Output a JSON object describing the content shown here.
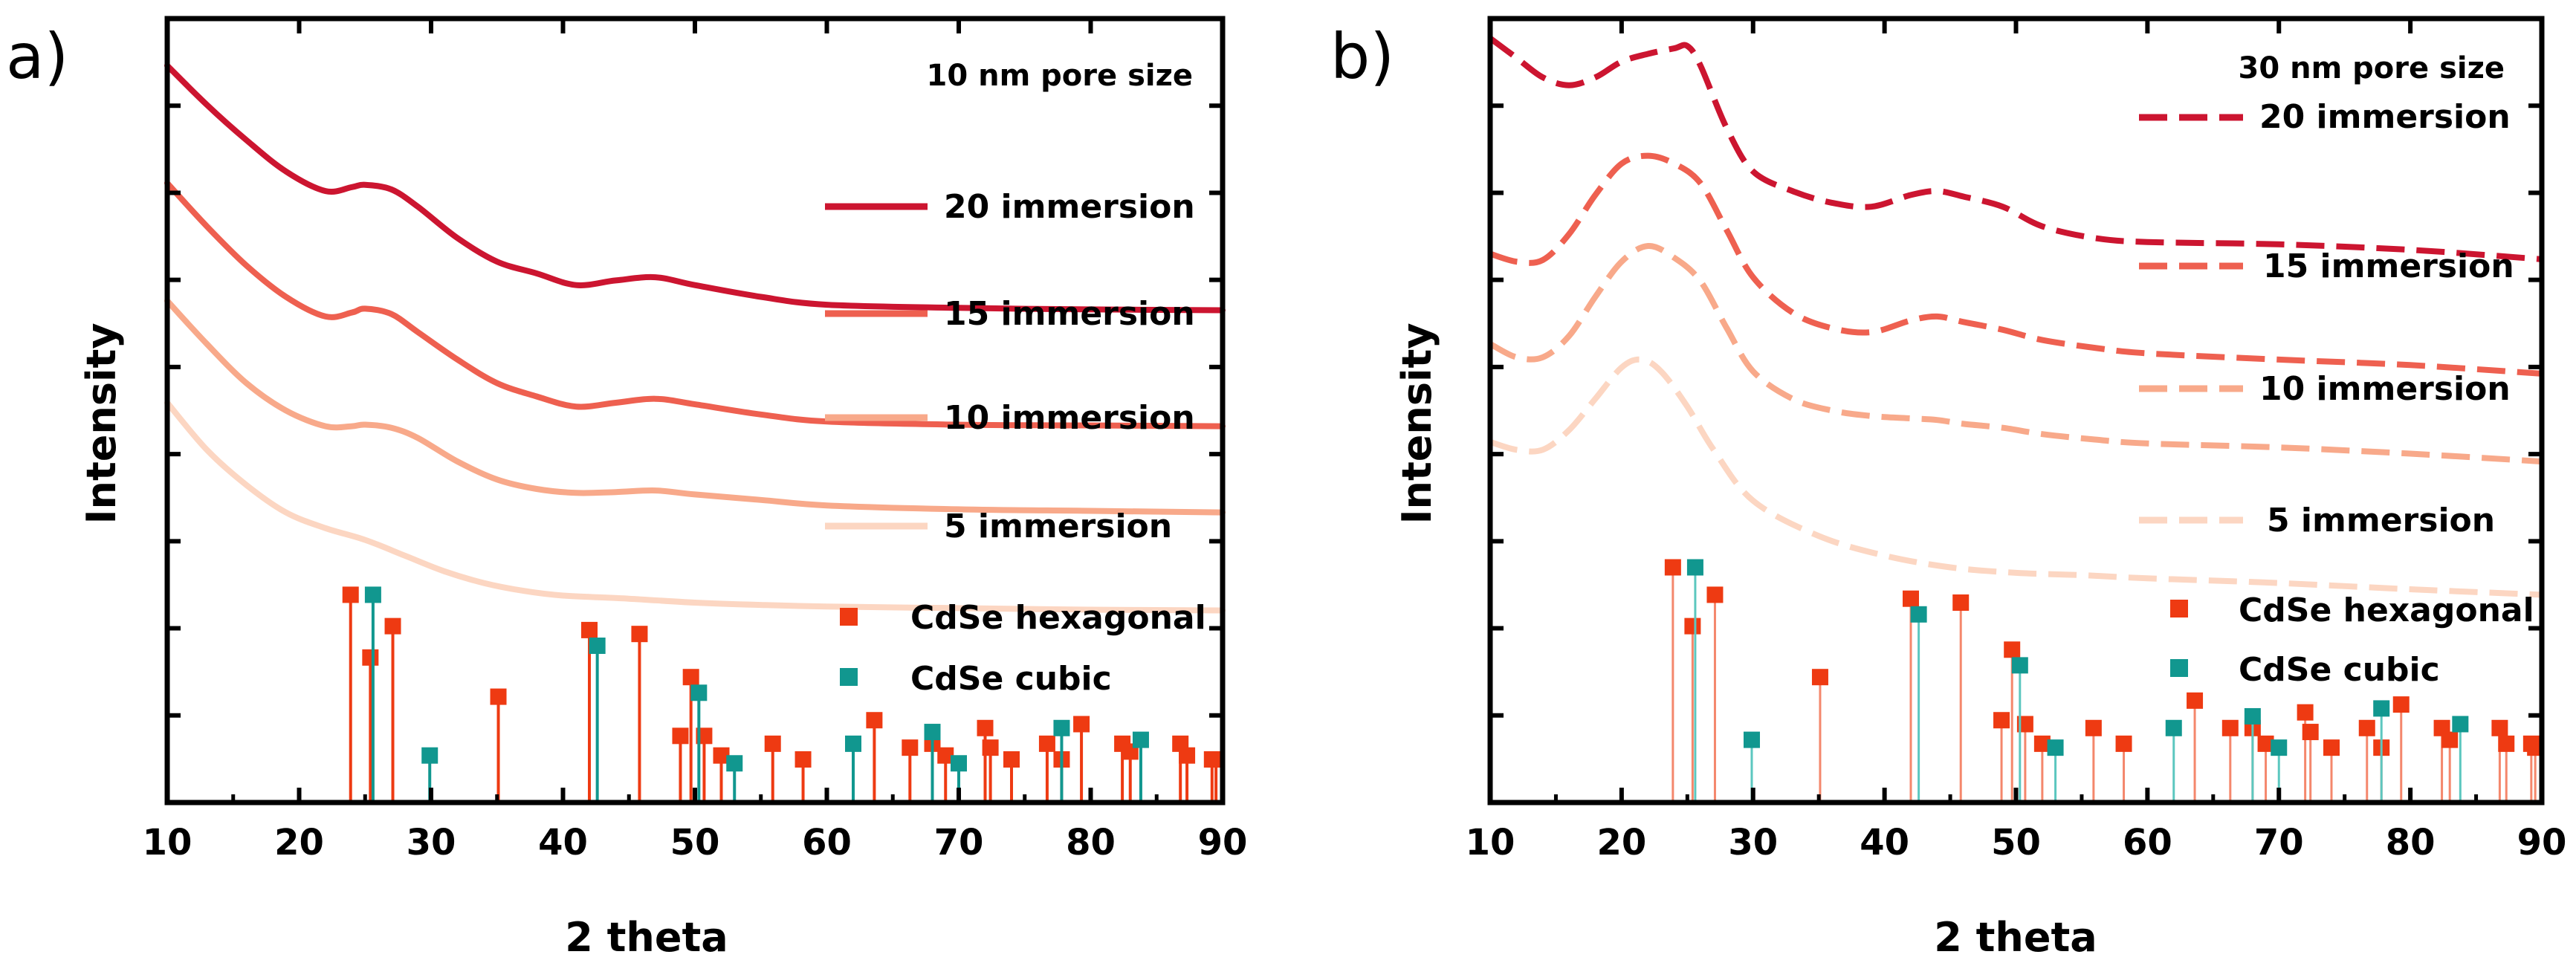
{
  "colors": {
    "ink": "#000000",
    "hexagonal": "#ee3a12",
    "cubic": "#11978f",
    "hex_stick": "#f4876c",
    "cubic_stick": "#5cc7bf",
    "s20": "#cc1530",
    "s15": "#ee6050",
    "s10": "#f8a98a",
    "s5": "#fcd6c2"
  },
  "chart_data": [
    {
      "type": "line",
      "panel_label": "a)",
      "title": "10 nm pore size",
      "xlabel": "2 theta",
      "ylabel": "Intensity",
      "xlim": [
        10,
        90
      ],
      "ylim": [
        0,
        100
      ],
      "xticks": [
        10,
        20,
        30,
        40,
        50,
        60,
        70,
        80,
        90
      ],
      "line_style": "solid",
      "grid": false,
      "series": [
        {
          "name": "20 immersion",
          "color_key": "s20",
          "x": [
            10,
            13,
            16,
            19,
            22,
            24,
            25,
            27,
            29,
            32,
            35,
            38,
            41,
            44,
            47,
            50,
            55,
            60,
            70,
            80,
            90
          ],
          "y": [
            94,
            89,
            84.5,
            80.5,
            78,
            78.5,
            78.8,
            78.2,
            76,
            72,
            69,
            67.5,
            66,
            66.6,
            67,
            66,
            64.5,
            63.5,
            63.1,
            62.9,
            62.8
          ]
        },
        {
          "name": "15 immersion",
          "color_key": "s15",
          "x": [
            10,
            13,
            16,
            19,
            22,
            24,
            25,
            27,
            29,
            32,
            35,
            38,
            41,
            44,
            47,
            50,
            55,
            60,
            70,
            80,
            90
          ],
          "y": [
            79,
            73.5,
            68.5,
            64.5,
            62,
            62.5,
            63,
            62.3,
            60,
            56.5,
            53.5,
            51.8,
            50.5,
            51,
            51.5,
            50.8,
            49.5,
            48.6,
            48.2,
            48.1,
            48
          ]
        },
        {
          "name": "10 immersion",
          "color_key": "s10",
          "x": [
            10,
            13,
            16,
            19,
            22,
            24,
            25,
            27,
            29,
            32,
            35,
            38,
            41,
            44,
            47,
            50,
            55,
            60,
            70,
            80,
            90
          ],
          "y": [
            64,
            58.5,
            53.5,
            50,
            48,
            48,
            48.2,
            47.8,
            46.5,
            43.5,
            41.2,
            40,
            39.5,
            39.6,
            39.8,
            39.3,
            38.6,
            37.9,
            37.4,
            37.2,
            37
          ]
        },
        {
          "name": "5 immersion",
          "color_key": "s5",
          "x": [
            10,
            13,
            16,
            19,
            22,
            25,
            28,
            31,
            34,
            37,
            40,
            45,
            50,
            55,
            60,
            70,
            80,
            90
          ],
          "y": [
            51,
            45,
            40.5,
            37,
            35,
            33.5,
            31.5,
            29.5,
            28,
            27,
            26.4,
            26,
            25.5,
            25.2,
            25,
            24.8,
            24.6,
            24.5
          ]
        }
      ],
      "reference_lines": [
        {
          "name": "CdSe hexagonal",
          "color_key": "hexagonal",
          "x": [
            23.9,
            25.4,
            27.1,
            35.1,
            42.0,
            45.8,
            48.9,
            49.7,
            50.7,
            52.0,
            55.9,
            58.2,
            63.6,
            66.3,
            68.0,
            69.0,
            72.0,
            72.4,
            74.0,
            76.7,
            77.8,
            79.3,
            82.4,
            83.0,
            86.8,
            87.3,
            89.2,
            89.5
          ],
          "y": [
            26.5,
            18.5,
            22.5,
            13.5,
            22,
            21.5,
            8.5,
            16,
            8.5,
            6,
            7.5,
            5.5,
            10.5,
            7,
            7.5,
            6,
            9.5,
            7,
            5.5,
            7.5,
            5.5,
            10,
            7.5,
            6.5,
            7.5,
            6,
            5.5,
            5.5
          ]
        },
        {
          "name": "CdSe cubic",
          "color_key": "cubic",
          "x": [
            25.6,
            29.9,
            42.6,
            50.3,
            53.0,
            62.0,
            68.0,
            70.0,
            77.8,
            83.8
          ],
          "y": [
            26.5,
            6,
            20,
            14,
            5,
            7.5,
            9,
            5,
            9.5,
            8
          ]
        }
      ],
      "legend": {
        "series": [
          "20 immersion",
          "15 immersion",
          "10 immersion",
          "5 immersion"
        ],
        "reference": [
          "CdSe hexagonal",
          "CdSe cubic"
        ]
      }
    },
    {
      "type": "line",
      "panel_label": "b)",
      "title": "30 nm pore size",
      "xlabel": "2 theta",
      "ylabel": "Intensity",
      "xlim": [
        10,
        90
      ],
      "ylim": [
        0,
        100
      ],
      "xticks": [
        10,
        20,
        30,
        40,
        50,
        60,
        70,
        80,
        90
      ],
      "line_style": "dashed",
      "grid": false,
      "series": [
        {
          "name": "20 immersion",
          "color_key": "s20",
          "x": [
            10,
            12,
            14,
            16,
            18,
            20,
            22,
            24,
            25,
            26,
            28,
            30,
            33,
            36,
            39,
            42,
            44,
            46,
            49,
            52,
            56,
            60,
            70,
            80,
            90
          ],
          "y": [
            97.5,
            95,
            92.5,
            91.5,
            92.5,
            94.5,
            95.5,
            96.2,
            96.5,
            94,
            86,
            80.5,
            78,
            76.5,
            76,
            77.5,
            78,
            77.3,
            76,
            73.5,
            72,
            71.5,
            71.2,
            70.5,
            69.3
          ]
        },
        {
          "name": "15 immersion",
          "color_key": "s15",
          "x": [
            10,
            12,
            14,
            16,
            18,
            20,
            22,
            24,
            26,
            28,
            30,
            33,
            36,
            39,
            42,
            44,
            46,
            49,
            52,
            56,
            60,
            70,
            80,
            90
          ],
          "y": [
            70,
            69,
            69.2,
            72.5,
            77.5,
            81.5,
            82.5,
            81.5,
            79,
            73,
            67,
            62.5,
            60.5,
            60,
            61.5,
            62,
            61.3,
            60.3,
            59,
            58,
            57.3,
            56.5,
            55.8,
            54.7
          ]
        },
        {
          "name": "10 immersion",
          "color_key": "s10",
          "x": [
            10,
            12,
            14,
            16,
            18,
            20,
            22,
            24,
            26,
            28,
            30,
            33,
            36,
            39,
            42,
            44,
            46,
            49,
            52,
            56,
            60,
            70,
            80,
            90
          ],
          "y": [
            58.5,
            56.8,
            56.8,
            59.5,
            64.5,
            69,
            71,
            69.5,
            66.5,
            60.5,
            55,
            51.5,
            50,
            49.3,
            49,
            48.8,
            48.3,
            47.8,
            47,
            46.3,
            45.8,
            45.3,
            44.5,
            43.5
          ]
        },
        {
          "name": "5 immersion",
          "color_key": "s5",
          "x": [
            10,
            12,
            14,
            16,
            18,
            20,
            21.5,
            23,
            25,
            27,
            30,
            35,
            40,
            45,
            50,
            55,
            60,
            70,
            80,
            90
          ],
          "y": [
            46,
            45,
            45,
            47.5,
            51.5,
            55.5,
            56.5,
            55,
            50.5,
            45,
            38.5,
            34,
            31.5,
            30,
            29.3,
            29,
            28.6,
            28,
            27.2,
            26.5
          ]
        }
      ],
      "reference_lines": [
        {
          "name": "CdSe hexagonal",
          "color_key": "hexagonal",
          "x": [
            23.9,
            25.4,
            27.1,
            35.1,
            42.0,
            45.8,
            48.9,
            49.7,
            50.7,
            52.0,
            55.9,
            58.2,
            63.6,
            66.3,
            68.0,
            69.0,
            72.0,
            72.4,
            74.0,
            76.7,
            77.8,
            79.3,
            82.4,
            83.0,
            86.8,
            87.3,
            89.2,
            89.5
          ],
          "y": [
            30,
            22.5,
            26.5,
            16,
            26,
            25.5,
            10.5,
            19.5,
            10,
            7.5,
            9.5,
            7.5,
            13,
            9.5,
            9.5,
            7.5,
            11.5,
            9,
            7,
            9.5,
            7,
            12.5,
            9.5,
            8,
            9.5,
            7.5,
            7.5,
            7
          ]
        },
        {
          "name": "CdSe cubic",
          "color_key": "cubic",
          "x": [
            25.6,
            29.9,
            42.6,
            50.3,
            53.0,
            62.0,
            68.0,
            70.0,
            77.8,
            83.8
          ],
          "y": [
            30,
            8,
            24,
            17.5,
            7,
            9.5,
            11,
            7,
            12,
            10
          ]
        }
      ],
      "legend": {
        "series": [
          "20 immersion",
          "15 immersion",
          "10 immersion",
          "5 immersion"
        ],
        "reference": [
          "CdSe hexagonal",
          "CdSe cubic"
        ]
      }
    }
  ]
}
